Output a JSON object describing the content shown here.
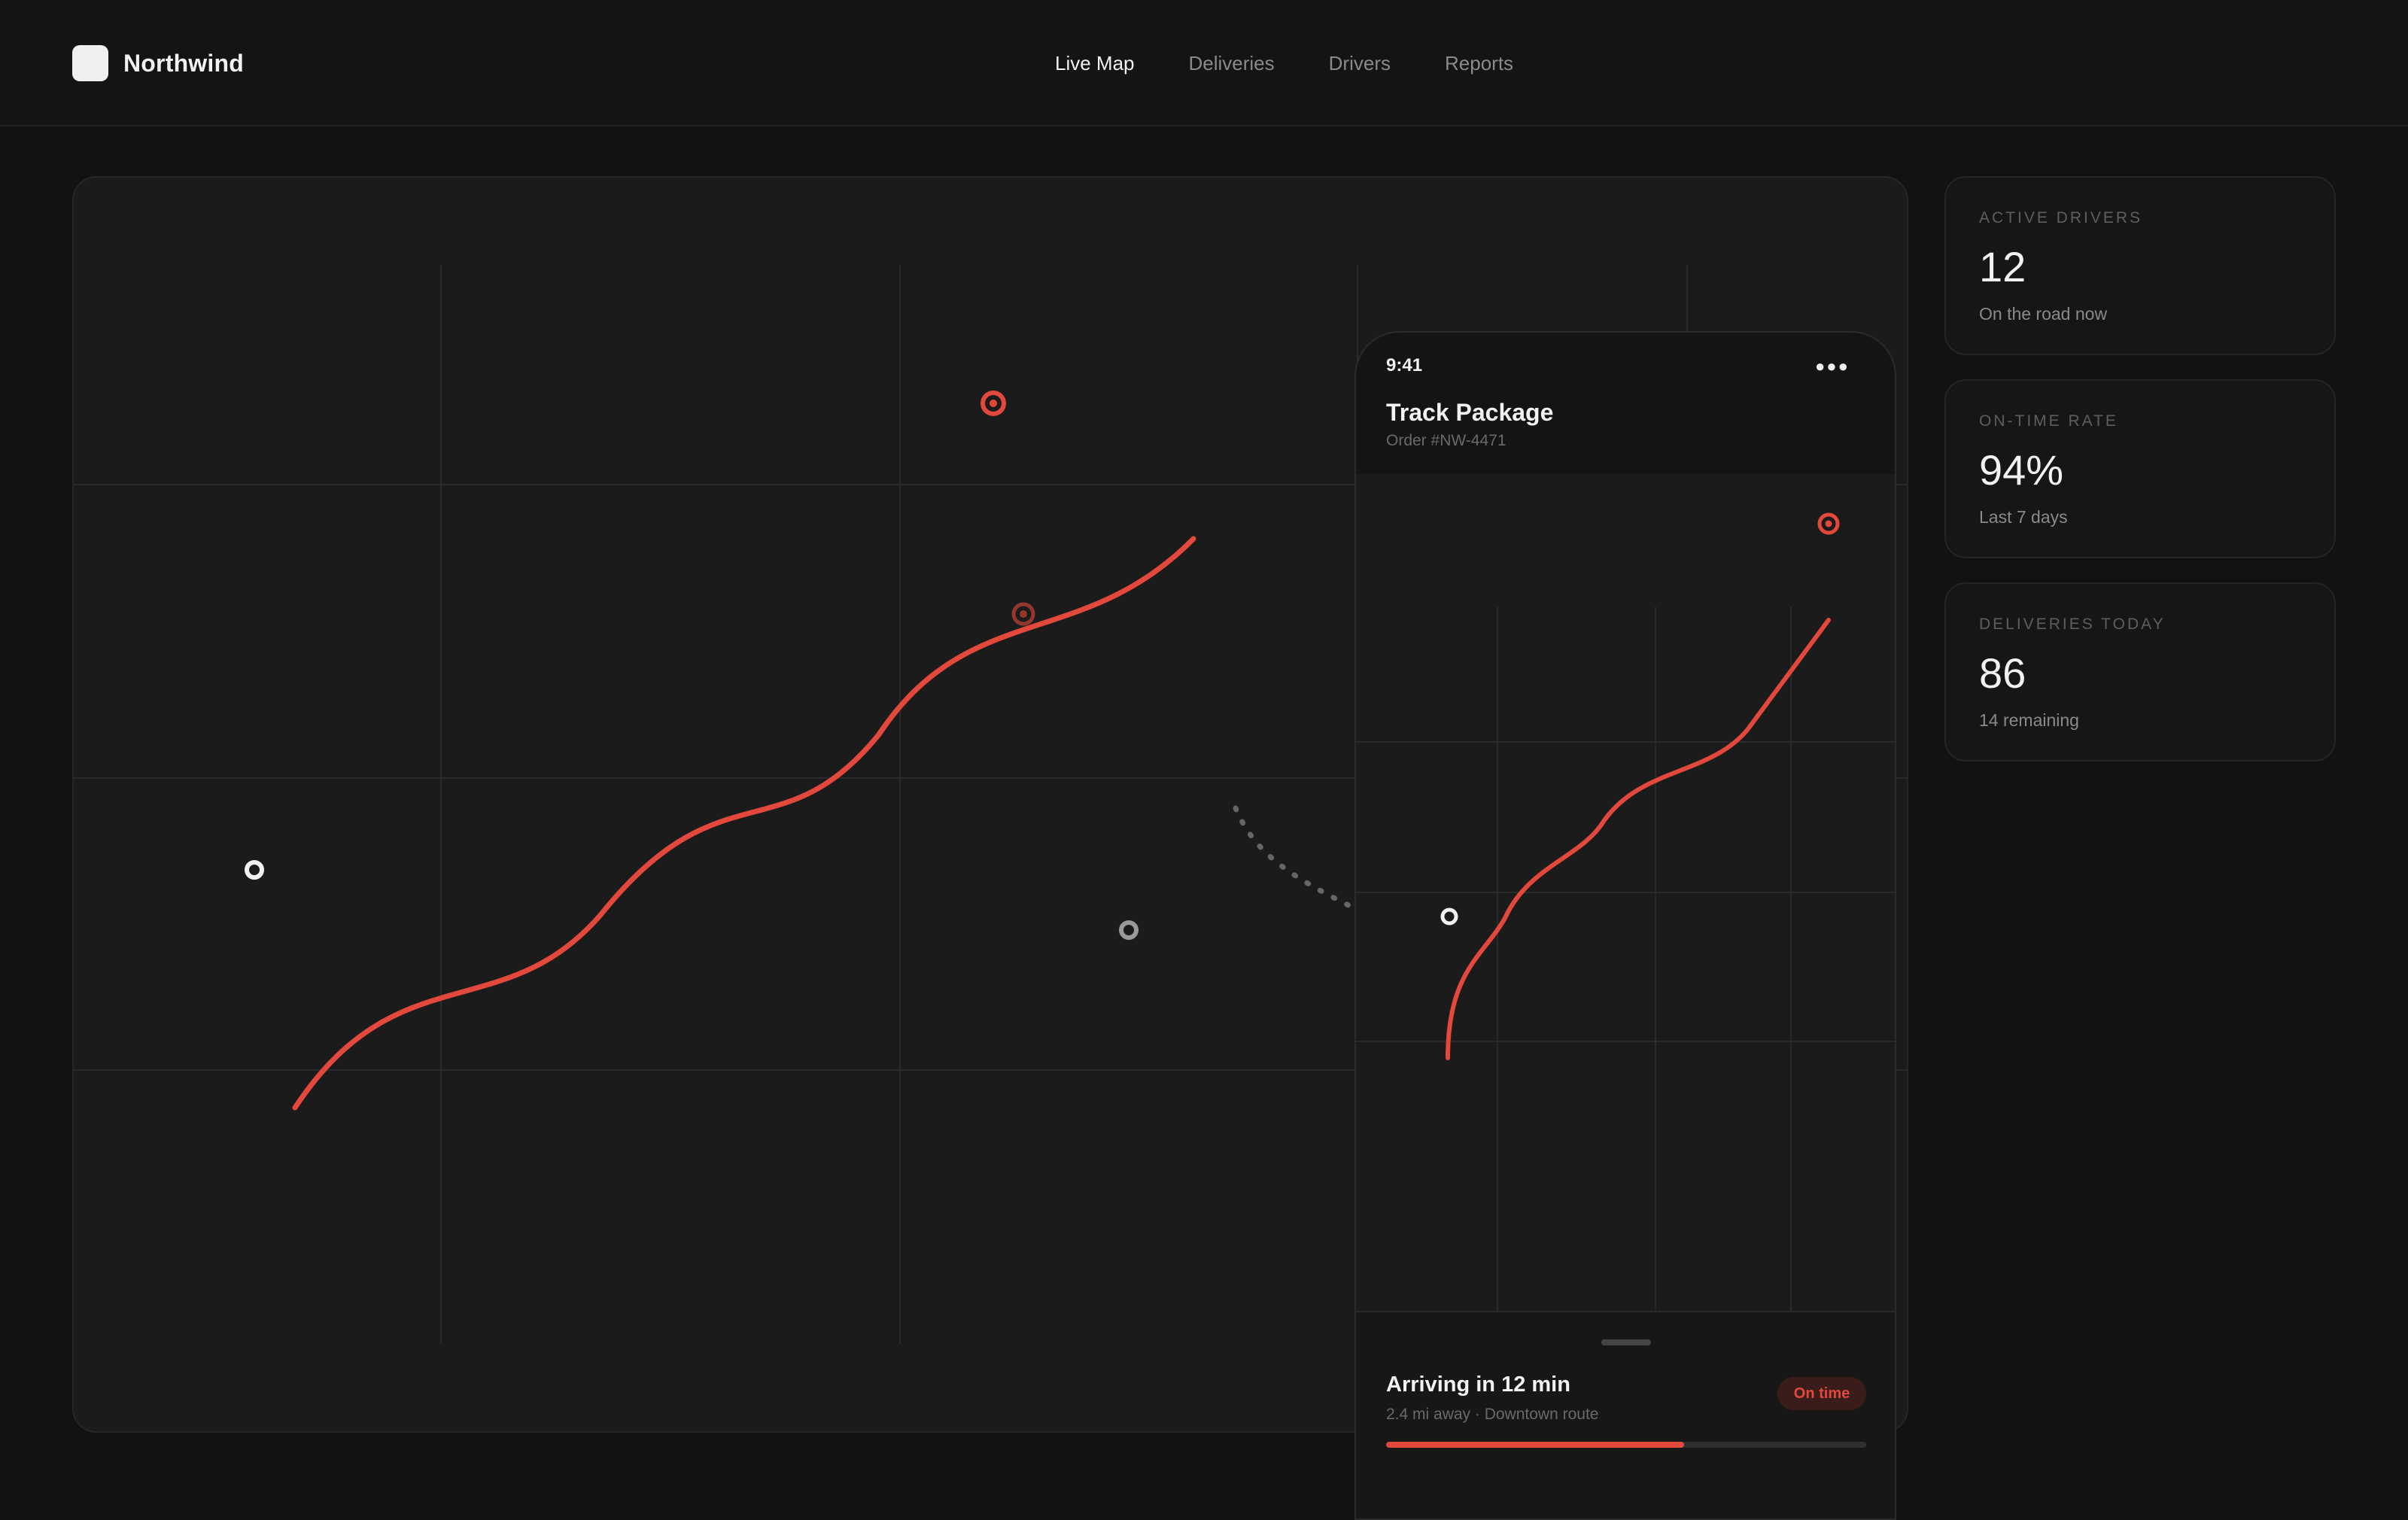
{
  "app": {
    "name": "Northwind"
  },
  "nav": {
    "items": [
      {
        "label": "Live Map",
        "active": true
      },
      {
        "label": "Deliveries",
        "active": false
      },
      {
        "label": "Drivers",
        "active": false
      },
      {
        "label": "Reports",
        "active": false
      }
    ]
  },
  "map": {
    "route_color": "#e2483b",
    "markers": [
      {
        "name": "destination-marker",
        "icon": "target-icon"
      },
      {
        "name": "pickup-marker",
        "icon": "target-icon"
      },
      {
        "name": "driver-location-marker",
        "icon": "ring-icon"
      },
      {
        "name": "waypoint-marker",
        "icon": "ring-icon"
      }
    ]
  },
  "phone": {
    "status_time": "9:41",
    "signal_glyph": "●●●",
    "title": "Track Package",
    "order": "Order #NW-4471",
    "sheet": {
      "eta": "Arriving in 12 min",
      "details": "2.4 mi away · Downtown route",
      "status_badge": "On time",
      "progress": 0.62
    }
  },
  "stats": [
    {
      "label": "ACTIVE DRIVERS",
      "value": "12",
      "sub": "On the road now"
    },
    {
      "label": "ON-TIME RATE",
      "value": "94%",
      "sub": "Last 7 days"
    },
    {
      "label": "DELIVERIES TODAY",
      "value": "86",
      "sub": "14 remaining"
    }
  ],
  "colors": {
    "accent": "#e2483b",
    "background": "#121212",
    "panel": "#1b1b1b",
    "text": "#f2f2f2",
    "muted": "#8a8a8a"
  }
}
